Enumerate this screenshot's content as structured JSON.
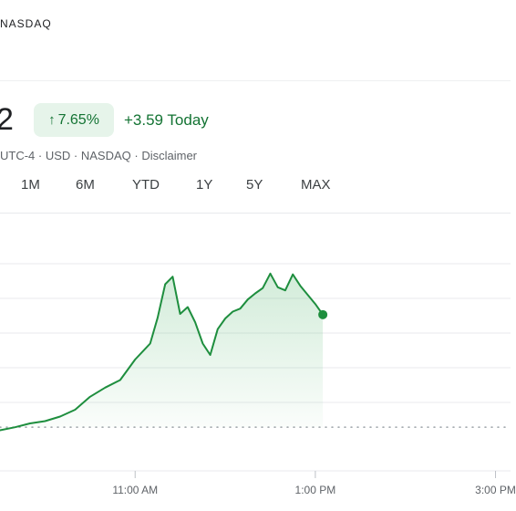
{
  "header": {
    "exchange": "NASDAQ"
  },
  "quote": {
    "price_visible": "2",
    "percent_change": "7.65%",
    "change_today": "+3.59 Today",
    "meta": {
      "timezone": "UTC-4",
      "currency": "USD",
      "exchange": "NASDAQ",
      "disclaimer": "Disclaimer",
      "separator": " · "
    },
    "color_up": "#137333"
  },
  "ranges": [
    "1M",
    "6M",
    "YTD",
    "1Y",
    "5Y",
    "MAX"
  ],
  "chart_data": {
    "type": "area",
    "line_color": "#1e8e3e",
    "x_tick_labels": [
      "11:00 AM",
      "1:00 PM",
      "3:00 PM"
    ],
    "x_tick_times": [
      "11:00",
      "13:00",
      "15:00"
    ],
    "times": [
      "09:30",
      "09:40",
      "09:50",
      "10:00",
      "10:10",
      "10:20",
      "10:30",
      "10:40",
      "10:50",
      "11:00",
      "11:10",
      "11:15",
      "11:20",
      "11:25",
      "11:30",
      "11:35",
      "11:40",
      "11:45",
      "11:50",
      "11:55",
      "12:00",
      "12:05",
      "12:10",
      "12:15",
      "12:20",
      "12:25",
      "12:30",
      "12:35",
      "12:40",
      "12:45",
      "12:50",
      "13:00",
      "13:05"
    ],
    "values": [
      0.0,
      0.4,
      0.9,
      1.2,
      1.8,
      2.7,
      4.4,
      5.6,
      6.6,
      9.3,
      11.4,
      14.8,
      19.2,
      20.2,
      15.3,
      16.2,
      14.2,
      11.4,
      9.9,
      13.3,
      14.7,
      15.6,
      16.0,
      17.2,
      18.0,
      18.7,
      20.6,
      18.8,
      18.4,
      20.5,
      19.0,
      16.6,
      15.2
    ],
    "previous_close": 0.4,
    "y_range": [
      -1.5,
      22.5
    ],
    "grid": true,
    "last_point_marker": true
  }
}
